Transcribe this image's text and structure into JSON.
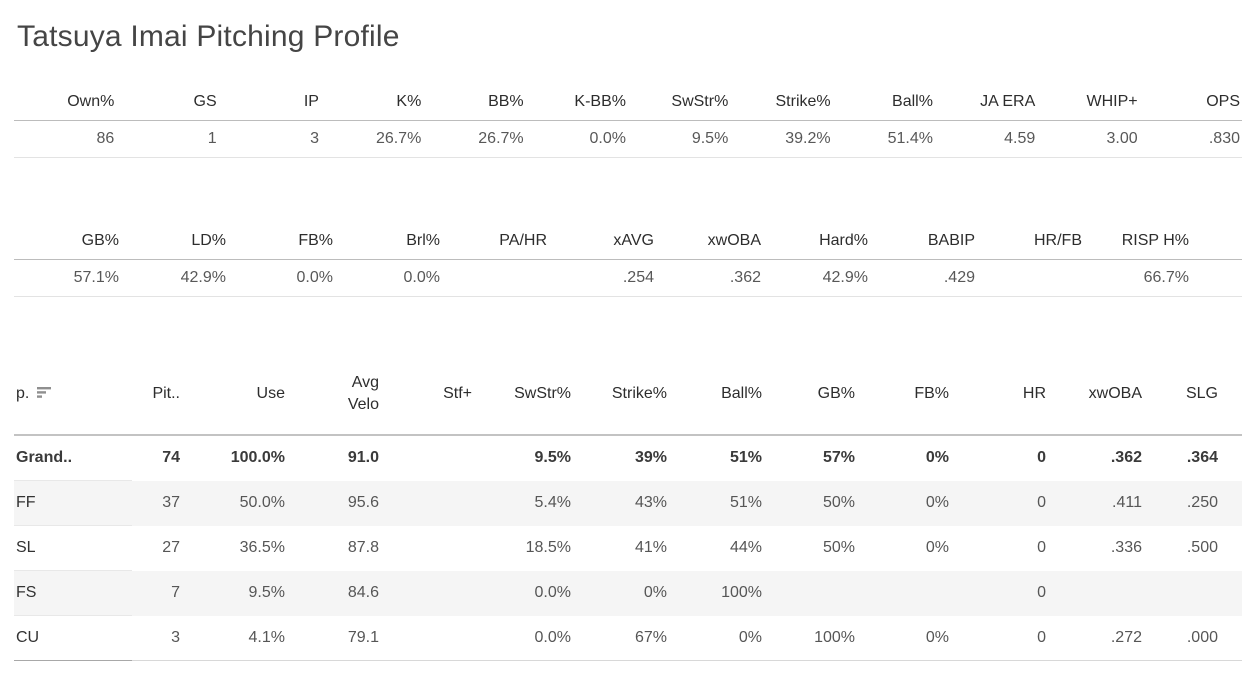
{
  "title": "Tatsuya Imai Pitching Profile",
  "summary_table": {
    "columns": [
      "Own%",
      "GS",
      "IP",
      "K%",
      "BB%",
      "K-BB%",
      "SwStr%",
      "Strike%",
      "Ball%",
      "JA ERA",
      "WHIP+",
      "OPS"
    ],
    "values": [
      "86",
      "1",
      "3",
      "26.7%",
      "26.7%",
      "0.0%",
      "9.5%",
      "39.2%",
      "51.4%",
      "4.59",
      "3.00",
      ".830"
    ]
  },
  "batted_ball_table": {
    "columns": [
      "GB%",
      "LD%",
      "FB%",
      "Brl%",
      "PA/HR",
      "xAVG",
      "xwOBA",
      "Hard%",
      "BABIP",
      "HR/FB",
      "RISP H%"
    ],
    "values": [
      "57.1%",
      "42.9%",
      "0.0%",
      "0.0%",
      "",
      ".254",
      ".362",
      "42.9%",
      ".429",
      "",
      "66.7%"
    ]
  },
  "pitch_table": {
    "sort_icon": "sort-descending-icon",
    "columns": [
      "p.",
      "Pit..",
      "Use",
      "Avg\nVelo",
      "Stf+",
      "SwStr%",
      "Strike%",
      "Ball%",
      "GB%",
      "FB%",
      "HR",
      "xwOBA",
      "SLG"
    ],
    "rows": [
      {
        "pitch": "Grand..",
        "bold": true,
        "values": [
          "74",
          "100.0%",
          "91.0",
          "",
          "9.5%",
          "39%",
          "51%",
          "57%",
          "0%",
          "0",
          ".362",
          ".364"
        ]
      },
      {
        "pitch": "FF",
        "bold": false,
        "values": [
          "37",
          "50.0%",
          "95.6",
          "",
          "5.4%",
          "43%",
          "51%",
          "50%",
          "0%",
          "0",
          ".411",
          ".250"
        ]
      },
      {
        "pitch": "SL",
        "bold": false,
        "values": [
          "27",
          "36.5%",
          "87.8",
          "",
          "18.5%",
          "41%",
          "44%",
          "50%",
          "0%",
          "0",
          ".336",
          ".500"
        ]
      },
      {
        "pitch": "FS",
        "bold": false,
        "values": [
          "7",
          "9.5%",
          "84.6",
          "",
          "0.0%",
          "0%",
          "100%",
          "",
          "",
          "0",
          "",
          ""
        ]
      },
      {
        "pitch": "CU",
        "bold": false,
        "values": [
          "3",
          "4.1%",
          "79.1",
          "",
          "0.0%",
          "67%",
          "0%",
          "100%",
          "0%",
          "0",
          ".272",
          ".000"
        ]
      }
    ]
  }
}
